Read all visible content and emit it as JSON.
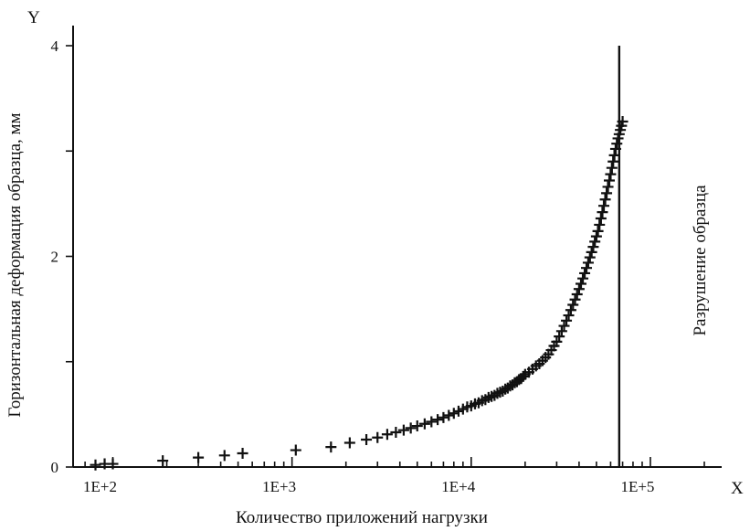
{
  "chart_data": {
    "type": "scatter",
    "title": "",
    "xlabel": "Количество приложений нагрузки",
    "ylabel": "Горизонтальная деформация образца, мм",
    "x_axis_name": "X",
    "y_axis_name": "Y",
    "x_scale": "log",
    "xlim": [
      60,
      250000
    ],
    "ylim": [
      0,
      4.0
    ],
    "x_ticks": [
      100,
      1000,
      10000,
      100000
    ],
    "x_tick_labels": [
      "1E+2",
      "1E+3",
      "1E+4",
      "1E+5"
    ],
    "y_ticks": [
      0,
      1,
      2,
      3,
      4
    ],
    "y_tick_labels": [
      "0",
      "",
      "2",
      "",
      "4"
    ],
    "grid": false,
    "annotation": {
      "text": "Разрушение образца",
      "x": 67000
    },
    "series": [
      {
        "marker": "plus",
        "x": [
          80,
          90,
          100,
          190,
          300,
          420,
          530,
          1050,
          1650,
          2100,
          2600,
          3000,
          3400,
          3800,
          4200,
          4600,
          5000,
          5500,
          6000,
          6500,
          7000,
          7500,
          8000,
          8500,
          9000,
          9500,
          10000,
          10500,
          11000,
          11500,
          12000,
          12500,
          13000,
          13500,
          14000,
          14500,
          15000,
          15500,
          16000,
          16500,
          17000,
          17500,
          18000,
          18500,
          19000,
          19500,
          20000,
          21000,
          22000,
          23000,
          24000,
          25000,
          26000,
          27000,
          28000,
          29000,
          30000,
          31000,
          32000,
          33000,
          34000,
          35000,
          36000,
          37000,
          38000,
          39000,
          40000,
          41000,
          42000,
          43000,
          44000,
          45000,
          46000,
          47000,
          48000,
          49000,
          50000,
          51000,
          52000,
          53000,
          54000,
          55000,
          56000,
          57000,
          58000,
          59000,
          60000,
          61000,
          62000,
          63000,
          64000,
          65000,
          66000,
          67000,
          68000,
          69000,
          70000
        ],
        "y": [
          0.02,
          0.03,
          0.03,
          0.06,
          0.09,
          0.11,
          0.13,
          0.16,
          0.19,
          0.23,
          0.26,
          0.28,
          0.31,
          0.33,
          0.35,
          0.37,
          0.39,
          0.41,
          0.43,
          0.45,
          0.47,
          0.49,
          0.51,
          0.53,
          0.55,
          0.57,
          0.58,
          0.6,
          0.61,
          0.63,
          0.64,
          0.66,
          0.67,
          0.68,
          0.7,
          0.71,
          0.72,
          0.74,
          0.75,
          0.77,
          0.78,
          0.8,
          0.81,
          0.83,
          0.84,
          0.86,
          0.88,
          0.9,
          0.93,
          0.96,
          0.98,
          1.01,
          1.04,
          1.07,
          1.11,
          1.15,
          1.19,
          1.24,
          1.29,
          1.34,
          1.39,
          1.44,
          1.49,
          1.54,
          1.59,
          1.64,
          1.69,
          1.74,
          1.79,
          1.84,
          1.89,
          1.94,
          1.99,
          2.04,
          2.09,
          2.14,
          2.19,
          2.24,
          2.3,
          2.36,
          2.42,
          2.48,
          2.54,
          2.6,
          2.66,
          2.72,
          2.78,
          2.84,
          2.9,
          2.96,
          3.02,
          3.07,
          3.12,
          3.16,
          3.2,
          3.24,
          3.28
        ]
      }
    ]
  }
}
